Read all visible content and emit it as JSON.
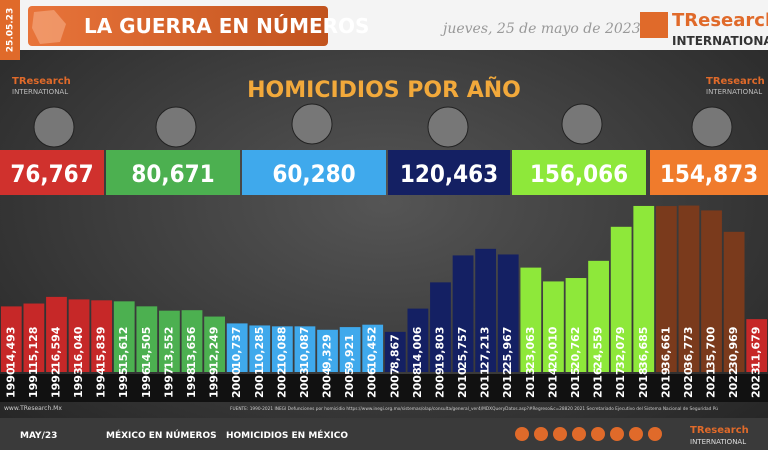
{
  "header": {
    "side_date": "25.05.23",
    "title": "LA GUERRA EN NÚMEROS",
    "date": "jueves, 25 de mayo de 2023",
    "logo_name": "TResearch",
    "logo_sub": "INTERNATIONAL"
  },
  "chart_data": {
    "type": "bar",
    "title": "HOMICIDIOS POR AÑO",
    "totals": [
      {
        "value": 76767,
        "label": "76,767",
        "color": "#d0312d"
      },
      {
        "value": 80671,
        "label": "80,671",
        "color": "#4cb050"
      },
      {
        "value": 60280,
        "label": "60,280",
        "color": "#3fa9ec"
      },
      {
        "value": 120463,
        "label": "120,463",
        "color": "#142063"
      },
      {
        "value": 156066,
        "label": "156,066",
        "color": "#8ee83a"
      },
      {
        "value": 154873,
        "label": "154,873",
        "color": "#f07b2c"
      }
    ],
    "categories": [
      "1990",
      "1991",
      "1992",
      "1993",
      "1994",
      "1995",
      "1996",
      "1997",
      "1998",
      "1999",
      "2000",
      "2001",
      "2002",
      "2003",
      "2004",
      "2005",
      "2006",
      "2007",
      "2008",
      "2009",
      "2010",
      "2011",
      "2012",
      "2013",
      "2014",
      "2015",
      "2016",
      "2017",
      "2018",
      "2019",
      "2020",
      "2021",
      "2022",
      "2023"
    ],
    "values": [
      14493,
      15128,
      16594,
      16040,
      15839,
      15612,
      14505,
      13552,
      13656,
      12249,
      10737,
      10285,
      10088,
      10087,
      9329,
      9921,
      10452,
      8867,
      14006,
      19803,
      25757,
      27213,
      25967,
      23063,
      20010,
      20762,
      24559,
      32079,
      36685,
      36661,
      36773,
      35700,
      30969,
      11679
    ],
    "value_labels": [
      "14,493",
      "15,128",
      "16,594",
      "16,040",
      "15,839",
      "15,612",
      "14,505",
      "13,552",
      "13,656",
      "12,249",
      "10,737",
      "10,285",
      "10,088",
      "10,087",
      "9,329",
      "9,921",
      "10,452",
      "8,867",
      "14,006",
      "19,803",
      "25,757",
      "27,213",
      "25,967",
      "23,063",
      "20,010",
      "20,762",
      "24,559",
      "32,079",
      "36,685",
      "36,661",
      "36,773",
      "35,700",
      "30,969",
      "11,679"
    ],
    "colors": [
      "#c62828",
      "#c62828",
      "#c62828",
      "#c62828",
      "#c62828",
      "#4cb050",
      "#4cb050",
      "#4cb050",
      "#4cb050",
      "#4cb050",
      "#3fa9ec",
      "#3fa9ec",
      "#3fa9ec",
      "#3fa9ec",
      "#3fa9ec",
      "#3fa9ec",
      "#3fa9ec",
      "#142063",
      "#142063",
      "#142063",
      "#142063",
      "#142063",
      "#142063",
      "#8ee83a",
      "#8ee83a",
      "#8ee83a",
      "#8ee83a",
      "#8ee83a",
      "#8ee83a",
      "#7a3a1c",
      "#7a3a1c",
      "#7a3a1c",
      "#7a3a1c",
      "#c62828"
    ],
    "ylim": [
      0,
      38000
    ]
  },
  "footer": {
    "website": "www.TResearch.Mx",
    "source": "FUENTE: 1990-2021 INEGI Defunciones por homicidio https://www.inegi.org.mx/sistemas/olap/consulta/general_ver4/MDXQueryDatos.asp?#Regreso&c=28820  2021 Secretariado Ejecutivo del Sistema Nacional de Seguridad Pú",
    "month": "MAY/23",
    "link1": "MÉXICO EN NÚMEROS",
    "link2": "HOMICIDIOS EN MÉXICO"
  }
}
